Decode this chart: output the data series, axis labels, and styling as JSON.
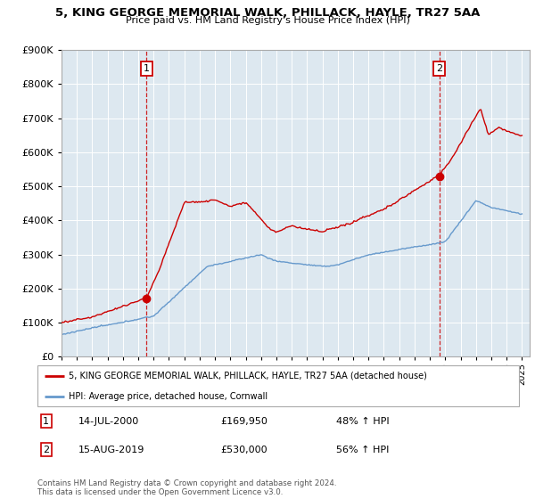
{
  "title": "5, KING GEORGE MEMORIAL WALK, PHILLACK, HAYLE, TR27 5AA",
  "subtitle": "Price paid vs. HM Land Registry's House Price Index (HPI)",
  "ylim": [
    0,
    900000
  ],
  "yticks": [
    0,
    100000,
    200000,
    300000,
    400000,
    500000,
    600000,
    700000,
    800000,
    900000
  ],
  "xlim_start": 1995,
  "xlim_end": 2025.5,
  "sale1_date": 2000.54,
  "sale1_price": 169950,
  "sale2_date": 2019.62,
  "sale2_price": 530000,
  "line_color_property": "#cc0000",
  "line_color_hpi": "#6699cc",
  "vline_color": "#cc0000",
  "bg_color": "#dde8f0",
  "legend_property": "5, KING GEORGE MEMORIAL WALK, PHILLACK, HAYLE, TR27 5AA (detached house)",
  "legend_hpi": "HPI: Average price, detached house, Cornwall",
  "footer": "Contains HM Land Registry data © Crown copyright and database right 2024.\nThis data is licensed under the Open Government Licence v3.0.",
  "grid_color": "#bbccdd"
}
